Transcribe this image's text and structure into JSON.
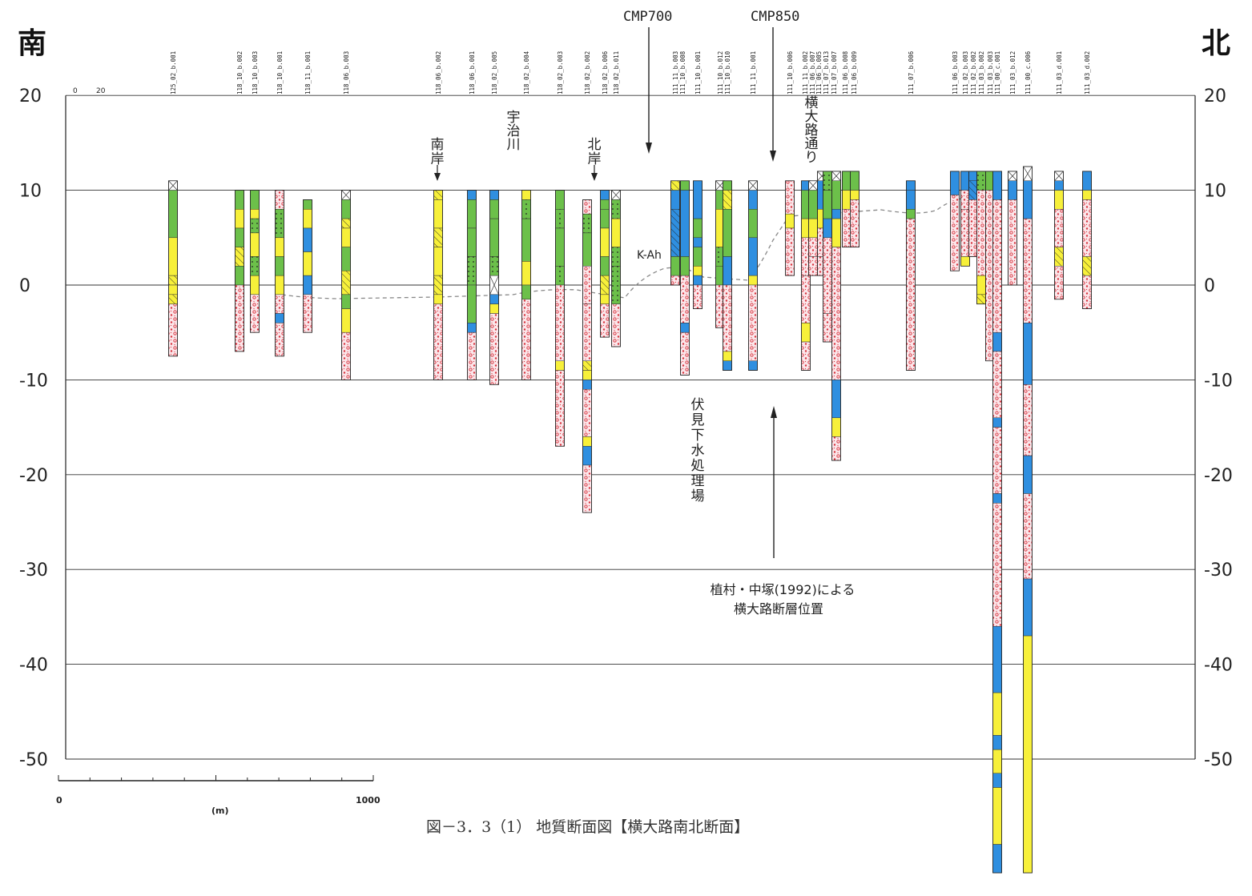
{
  "left_direction": "南",
  "right_direction": "北",
  "caption": "図－3．3（1） 地質断面図【横大路南北断面】",
  "elevation_ticks": [
    20,
    10,
    0,
    -10,
    -20,
    -30,
    -40,
    -50
  ],
  "elevation_range": [
    -50,
    20
  ],
  "top_small_scale": [
    "0",
    "20"
  ],
  "scale_bar": {
    "start": "0",
    "end": "1000",
    "unit": "(m)"
  },
  "annotations": {
    "cmp700": "CMP700",
    "cmp850": "CMP850",
    "south_bank": "南岸",
    "uji_river": "宇治川",
    "north_bank": "北岸",
    "yokooji_street": "横大路通り",
    "kah": "K-Ah",
    "fushimi_plant": "伏見下水処理場",
    "fault_note_line1": "植村・中塚(1992)による",
    "fault_note_line2": "横大路断層位置"
  },
  "colors": {
    "green": "#6cc04a",
    "yellow": "#f7f03a",
    "blue": "#2f8fe0",
    "gravel_fill": "#fbe6ea",
    "gravel_dot": "#d8323c",
    "frame": "#222222",
    "gridline": "#333333",
    "dashed_boundary": "#888888"
  },
  "borehole_ids": [
    "125_02_b.001",
    "118_10_b.002",
    "118_10_b.003",
    "118_10_b.001",
    "118_11_b.001",
    "118_06_b.003",
    "118_06_b.002",
    "118_06_b.001",
    "118_02_b.005",
    "118_02_b.004",
    "118_02_b.003",
    "118_02_b.002",
    "118_02_b.006",
    "118_02_b.011",
    "111_11_b.003",
    "111_10_b.008",
    "111_10_b.001",
    "111_10_b.012",
    "111_10_b.010",
    "111_11_b.001",
    "111_10_b.006",
    "111_11_b.002",
    "111_06_b.007",
    "111_06_b.005",
    "111_07_b.013",
    "111_07_b.007",
    "111_06_b.008",
    "111_06_b.009",
    "111_07_b.006",
    "111_06_b.003",
    "111_02_b.003",
    "111_02_b.002",
    "111_03_b.002",
    "111_03_b.003",
    "111_00_c.001",
    "111_03_b.012",
    "111_00_c.006",
    "111_03_d.001",
    "111_03_d.002"
  ]
}
